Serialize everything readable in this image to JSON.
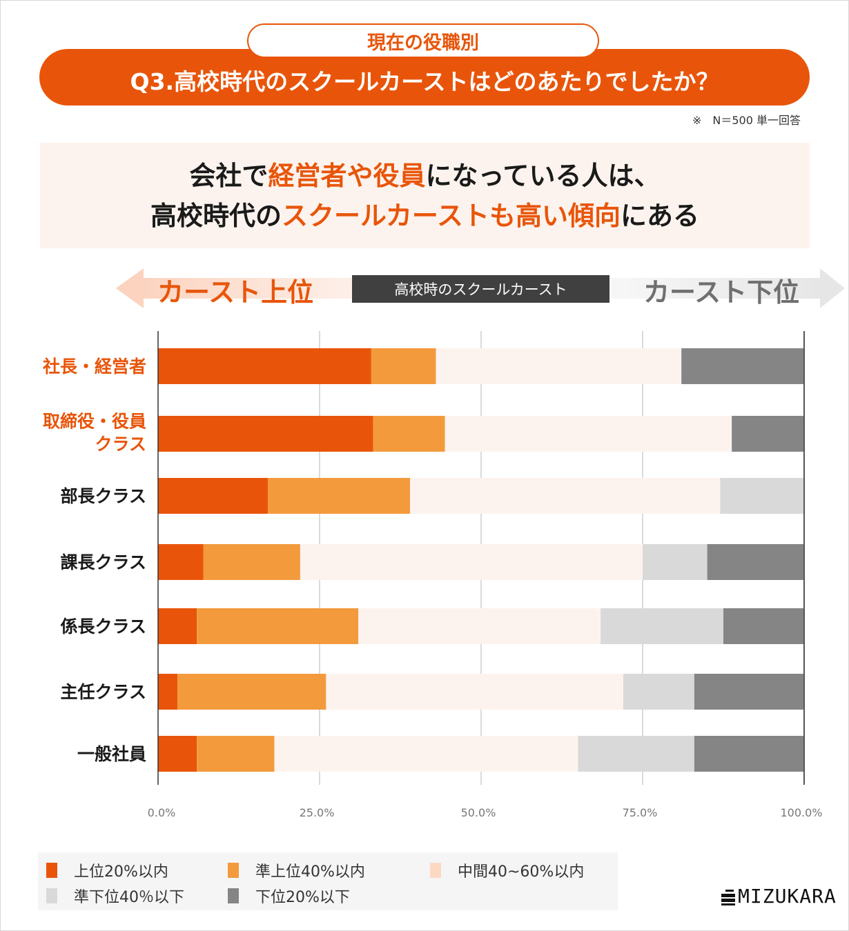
{
  "header": {
    "subtitle": "現在の役職別",
    "title": "Q3.高校時代のスクールカーストはどのあたりでしたか？",
    "note": "※　N＝500 単一回答"
  },
  "headline": {
    "line1": [
      {
        "text": "会社で",
        "highlight": false
      },
      {
        "text": "経営者や役員",
        "highlight": true
      },
      {
        "text": "になっている人は、",
        "highlight": false
      }
    ],
    "line2": [
      {
        "text": "高校時代の",
        "highlight": false
      },
      {
        "text": "スクールカーストも高い傾向",
        "highlight": true
      },
      {
        "text": "にある",
        "highlight": false
      }
    ]
  },
  "scale": {
    "left_label": "カースト上位",
    "center_label": "高校時のスクールカースト",
    "right_label": "カースト下位"
  },
  "colors": {
    "accent": "#e8550a",
    "text_dark": "#1a1a1a",
    "series": [
      "#e8550a",
      "#f39a3d",
      "#fdf3ee",
      "#d9d9d9",
      "#858585"
    ]
  },
  "brand": {
    "logo_text": "MIZUKARA"
  },
  "chart_data": {
    "type": "bar",
    "orientation": "horizontal",
    "stacked": true,
    "title": "Q3.高校時代のスクールカーストはどのあたりでしたか？",
    "xlabel": "高校時のスクールカースト",
    "ylabel": "",
    "xlim": [
      0,
      100
    ],
    "x_ticks": [
      "0.0%",
      "25.0%",
      "50.0%",
      "75.0%",
      "100.0%"
    ],
    "grid": true,
    "legend_position": "bottom-left",
    "categories": [
      "社長・経営者",
      "取締役・役員\nクラス",
      "部長クラス",
      "課長クラス",
      "係長クラス",
      "主任クラス",
      "一般社員"
    ],
    "highlighted_categories": [
      0,
      1
    ],
    "series": [
      {
        "name": "上位20%以内",
        "values": [
          33.0,
          33.3,
          17.0,
          7.0,
          6.0,
          3.0,
          6.0
        ]
      },
      {
        "name": "準上位40%以内",
        "values": [
          10.0,
          11.1,
          22.0,
          15.0,
          25.0,
          23.0,
          12.0
        ]
      },
      {
        "name": "中間40~60%以内",
        "values": [
          38.0,
          44.4,
          48.0,
          53.0,
          37.5,
          46.0,
          47.0
        ]
      },
      {
        "name": "準下位40％以下",
        "values": [
          0.0,
          0.0,
          13.0,
          10.0,
          19.0,
          11.0,
          18.0
        ]
      },
      {
        "name": "下位20%以下",
        "values": [
          19.0,
          11.1,
          0.0,
          15.0,
          12.5,
          17.0,
          17.0
        ]
      }
    ],
    "legend_swatch_colors": [
      "#e8550a",
      "#f39a3d",
      "#fdd9c4",
      "#d9d9d9",
      "#858585"
    ]
  }
}
